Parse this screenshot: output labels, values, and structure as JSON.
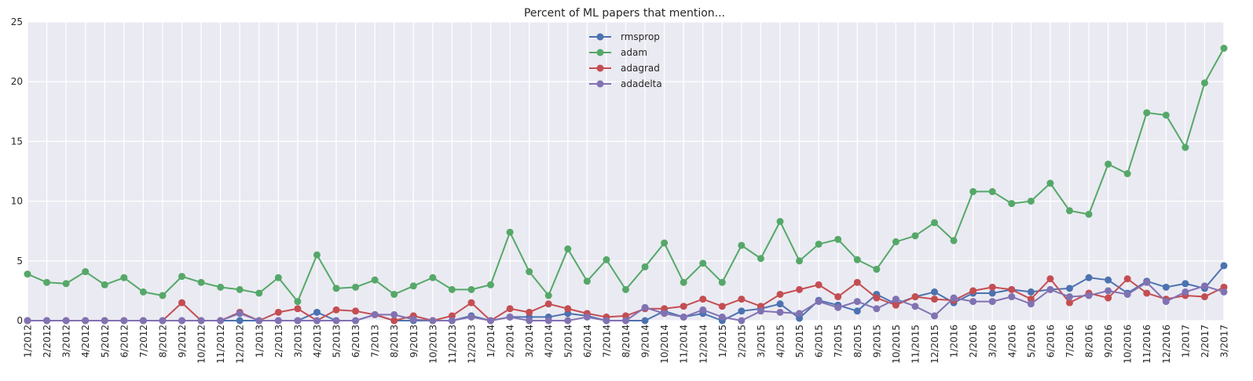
{
  "chart_data": {
    "type": "line",
    "title": "Percent of ML papers that mention...",
    "xlabel": "",
    "ylabel": "",
    "ylim": [
      0,
      25
    ],
    "yticks": [
      "0",
      "5",
      "10",
      "15",
      "20",
      "25"
    ],
    "grid": true,
    "legend_position": "top-center",
    "categories": [
      "1/2012",
      "2/2012",
      "3/2012",
      "4/2012",
      "5/2012",
      "6/2012",
      "7/2012",
      "8/2012",
      "9/2012",
      "10/2012",
      "11/2012",
      "12/2012",
      "1/2013",
      "2/2013",
      "3/2013",
      "4/2013",
      "5/2013",
      "6/2013",
      "7/2013",
      "8/2013",
      "9/2013",
      "10/2013",
      "11/2013",
      "12/2013",
      "1/2014",
      "2/2014",
      "3/2014",
      "4/2014",
      "5/2014",
      "6/2014",
      "7/2014",
      "8/2014",
      "9/2014",
      "10/2014",
      "11/2014",
      "12/2014",
      "1/2015",
      "2/2015",
      "3/2015",
      "4/2015",
      "5/2015",
      "6/2015",
      "7/2015",
      "8/2015",
      "9/2015",
      "10/2015",
      "11/2015",
      "12/2015",
      "1/2016",
      "2/2016",
      "3/2016",
      "4/2016",
      "5/2016",
      "6/2016",
      "7/2016",
      "8/2016",
      "9/2016",
      "10/2016",
      "11/2016",
      "12/2016",
      "1/2017",
      "2/2017",
      "3/2017"
    ],
    "series": [
      {
        "name": "rmsprop",
        "color": "#4c72b0",
        "values": [
          0,
          0,
          0,
          0,
          0,
          0,
          0,
          0,
          0,
          0,
          0,
          0,
          0,
          0,
          0,
          0.7,
          0,
          0,
          0.5,
          0,
          0,
          0,
          0,
          0.4,
          0,
          0.3,
          0.3,
          0.3,
          0.6,
          0.4,
          0,
          0,
          0,
          0.8,
          0.3,
          0.6,
          0,
          0.8,
          1.0,
          1.4,
          0.2,
          1.7,
          1.3,
          0.8,
          2.2,
          1.4,
          2.0,
          2.4,
          1.5,
          2.3,
          2.3,
          2.6,
          2.4,
          2.6,
          2.7,
          3.6,
          3.4,
          2.3,
          3.3,
          2.8,
          3.1,
          2.7,
          4.6
        ]
      },
      {
        "name": "adam",
        "color": "#55a868",
        "values": [
          3.9,
          3.2,
          3.1,
          4.1,
          3.0,
          3.6,
          2.4,
          2.1,
          3.7,
          3.2,
          2.8,
          2.6,
          2.3,
          3.6,
          1.6,
          5.5,
          2.7,
          2.8,
          3.4,
          2.2,
          2.9,
          3.6,
          2.6,
          2.6,
          3.0,
          7.4,
          4.1,
          2.1,
          6.0,
          3.3,
          5.1,
          2.6,
          4.5,
          6.5,
          3.2,
          4.8,
          3.2,
          6.3,
          5.2,
          8.3,
          5.0,
          6.4,
          6.8,
          5.1,
          4.3,
          6.6,
          7.1,
          8.2,
          6.7,
          10.8,
          10.8,
          9.8,
          10.0,
          11.5,
          9.2,
          8.9,
          13.1,
          12.3,
          17.4,
          17.2,
          14.5,
          19.9,
          22.8
        ]
      },
      {
        "name": "adagrad",
        "color": "#c44e52",
        "values": [
          0,
          0,
          0,
          0,
          0,
          0,
          0,
          0,
          1.5,
          0,
          0,
          0.7,
          0,
          0.7,
          1.0,
          0,
          0.9,
          0.8,
          0.5,
          0,
          0.4,
          0,
          0.4,
          1.5,
          0,
          1.0,
          0.7,
          1.4,
          1.0,
          0.6,
          0.3,
          0.4,
          1.0,
          1.0,
          1.2,
          1.8,
          1.2,
          1.8,
          1.2,
          2.2,
          2.6,
          3.0,
          2.0,
          3.2,
          1.9,
          1.3,
          2.0,
          1.8,
          1.7,
          2.5,
          2.8,
          2.6,
          1.8,
          3.5,
          1.5,
          2.3,
          1.9,
          3.5,
          2.3,
          1.8,
          2.1,
          2.0,
          2.8
        ]
      },
      {
        "name": "adadelta",
        "color": "#8172b2",
        "values": [
          0,
          0,
          0,
          0,
          0,
          0,
          0,
          0,
          0,
          0,
          0,
          0.6,
          0,
          0,
          0,
          0,
          0,
          0,
          0.5,
          0.5,
          0.1,
          0,
          0,
          0.3,
          0,
          0.3,
          0,
          0,
          0,
          0.3,
          0,
          0,
          1.1,
          0.6,
          0.3,
          0.9,
          0.3,
          0,
          0.8,
          0.7,
          0.6,
          1.6,
          1.1,
          1.6,
          1.0,
          1.8,
          1.2,
          0.4,
          1.9,
          1.6,
          1.6,
          2.0,
          1.4,
          2.6,
          2.0,
          2.1,
          2.5,
          2.2,
          3.2,
          1.6,
          2.4,
          2.9,
          2.4
        ]
      }
    ]
  }
}
